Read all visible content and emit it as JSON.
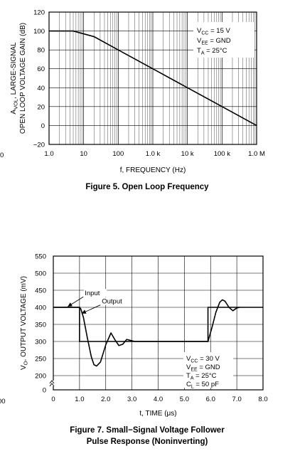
{
  "chart_data": [
    {
      "type": "line",
      "x_scale": "log",
      "xlabel": "f, FREQUENCY (Hz)",
      "ylabel_line1": "A",
      "ylabel_sub": "VOL",
      "ylabel_line1_rest": ", LARGE-SIGNAL",
      "ylabel_line2": "OPEN LOOP VOLTAGE GAIN (dB)",
      "caption": "Figure 5. Open Loop Frequency",
      "xlim": [
        1,
        1000000
      ],
      "ylim": [
        -20,
        120
      ],
      "x_ticks": [
        1,
        10,
        100,
        1000,
        10000,
        100000,
        1000000
      ],
      "x_tick_labels": [
        "1.0",
        "10",
        "100",
        "1.0 k",
        "10 k",
        "100 k",
        "1.0 M"
      ],
      "y_ticks": [
        -20,
        0,
        20,
        40,
        60,
        80,
        100,
        120
      ],
      "y_tick_labels": [
        "−20",
        "0",
        "20",
        "40",
        "60",
        "80",
        "100",
        "120"
      ],
      "grid": true,
      "series": [
        {
          "x": [
            1,
            2,
            5,
            10,
            20,
            100,
            1000,
            10000,
            100000,
            1000000
          ],
          "values": [
            100,
            100,
            100,
            97,
            94,
            80,
            60,
            40,
            20,
            0
          ]
        }
      ],
      "conditions": [
        {
          "pre": "V",
          "sub": "CC",
          "post": " = 15 V"
        },
        {
          "pre": "V",
          "sub": "EE",
          "post": " = GND"
        },
        {
          "pre": "T",
          "sub": "A",
          "post": " = 25°C"
        }
      ]
    },
    {
      "type": "line",
      "xlabel": "t, TIME  (μs)",
      "ylabel_pre": "V",
      "ylabel_sub": "O",
      "ylabel_post": ", OUTPUT VOLTAGE (mV)",
      "caption_line1": "Figure 7. Small−Signal Voltage Follower",
      "caption_line2": "Pulse Response (Noninverting)",
      "xlim": [
        0,
        8
      ],
      "ylim": [
        200,
        550
      ],
      "x_ticks": [
        0,
        1,
        2,
        3,
        4,
        5,
        6,
        7,
        8
      ],
      "x_tick_labels": [
        "0",
        "1.0",
        "2.0",
        "3.0",
        "4.0",
        "5.0",
        "6.0",
        "7.0",
        "8.0"
      ],
      "y_ticks": [
        200,
        250,
        300,
        350,
        400,
        450,
        500,
        550
      ],
      "y_tick_labels": [
        "200",
        "250",
        "300",
        "350",
        "400",
        "450",
        "500",
        "550"
      ],
      "y_axis_break_label": "0",
      "grid": true,
      "series": [
        {
          "name": "Input",
          "x": [
            0,
            1.0,
            1.0,
            5.9,
            5.9,
            8.0
          ],
          "values": [
            400,
            400,
            300,
            300,
            400,
            400
          ]
        },
        {
          "name": "Output",
          "x": [
            0,
            1.0,
            1.05,
            1.15,
            1.3,
            1.45,
            1.55,
            1.65,
            1.8,
            2.0,
            2.2,
            2.35,
            2.5,
            2.65,
            2.8,
            2.95,
            3.1,
            3.5,
            5.9,
            6.05,
            6.2,
            6.35,
            6.45,
            6.55,
            6.7,
            6.85,
            7.0,
            7.1
          ],
          "values": [
            400,
            400,
            395,
            370,
            310,
            255,
            232,
            228,
            240,
            290,
            325,
            305,
            288,
            292,
            306,
            303,
            300,
            300,
            300,
            340,
            385,
            415,
            422,
            418,
            400,
            390,
            398,
            400
          ]
        }
      ],
      "annotations": [
        {
          "text": "Input",
          "x": 1.2,
          "y": 435,
          "arrow_to_x": 0.55,
          "arrow_to_y": 402
        },
        {
          "text": "Output",
          "x": 1.85,
          "y": 411,
          "arrow_to_x": 1.08,
          "arrow_to_y": 382
        }
      ],
      "conditions": [
        {
          "pre": "V",
          "sub": "CC",
          "post": " = 30 V"
        },
        {
          "pre": "V",
          "sub": "EE",
          "post": " = GND"
        },
        {
          "pre": "T",
          "sub": "A",
          "post": " = 25°C"
        },
        {
          "pre": "C",
          "sub": "L",
          "post": " = 50 pF"
        }
      ]
    }
  ],
  "edge_labels": [
    "0",
    "00"
  ]
}
